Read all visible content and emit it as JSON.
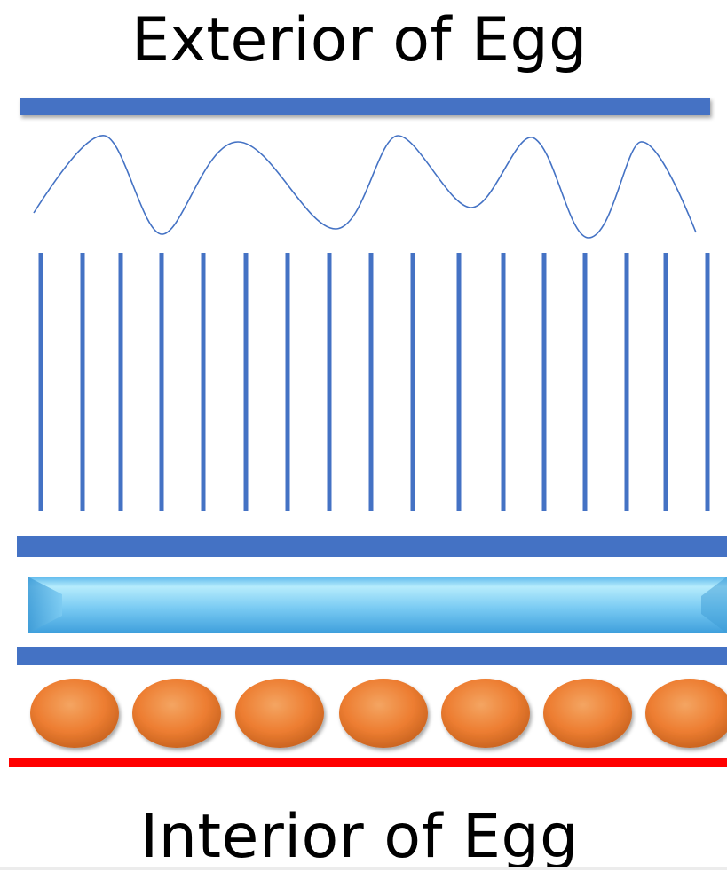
{
  "labels": {
    "top": "Exterior of Egg",
    "bottom": "Interior of Egg"
  },
  "colors": {
    "layer_blue": "#4472C4",
    "membrane_red": "#FF0000",
    "gel_light": "#A9E4FA",
    "gel_dark": "#4AA7E0",
    "cell_orange": "#ED7D31"
  },
  "diagram": {
    "vertical_line_count": 17,
    "oval_count": 7
  }
}
